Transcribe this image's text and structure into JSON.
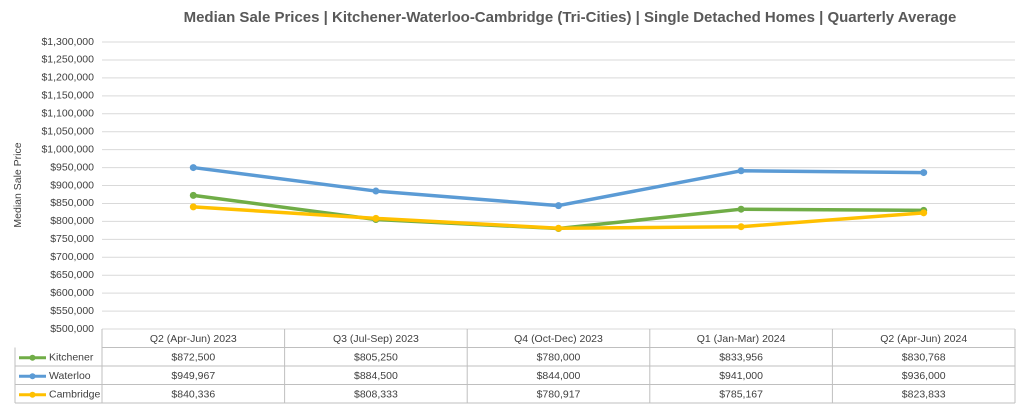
{
  "chart_data": {
    "type": "line",
    "title": "Median Sale Prices | Kitchener-Waterloo-Cambridge (Tri-Cities) | Single Detached Homes | Quarterly Average",
    "y_label": "Median Sale Price",
    "categories": [
      "Q2 (Apr-Jun) 2023",
      "Q3 (Jul-Sep) 2023",
      "Q4 (Oct-Dec) 2023",
      "Q1 (Jan-Mar) 2024",
      "Q2 (Apr-Jun) 2024"
    ],
    "series": [
      {
        "name": "Kitchener",
        "color": "#70ad47",
        "values": [
          872500,
          805250,
          780000,
          833956,
          830768
        ],
        "value_labels": [
          "$872,500",
          "$805,250",
          "$780,000",
          "$833,956",
          "$830,768"
        ]
      },
      {
        "name": "Waterloo",
        "color": "#5b9bd5",
        "values": [
          949967,
          884500,
          844000,
          941000,
          936000
        ],
        "value_labels": [
          "$949,967",
          "$884,500",
          "$844,000",
          "$941,000",
          "$936,000"
        ]
      },
      {
        "name": "Cambridge",
        "color": "#ffc000",
        "values": [
          840336,
          808333,
          780917,
          785167,
          823833
        ],
        "value_labels": [
          "$840,336",
          "$808,333",
          "$780,917",
          "$785,167",
          "$823,833"
        ]
      }
    ],
    "ylim": [
      500000,
      1300000
    ],
    "yticks": [
      {
        "value": 500000,
        "label": "$500,000"
      },
      {
        "value": 550000,
        "label": "$550,000"
      },
      {
        "value": 600000,
        "label": "$600,000"
      },
      {
        "value": 650000,
        "label": "$650,000"
      },
      {
        "value": 700000,
        "label": "$700,000"
      },
      {
        "value": 750000,
        "label": "$750,000"
      },
      {
        "value": 800000,
        "label": "$800,000"
      },
      {
        "value": 850000,
        "label": "$850,000"
      },
      {
        "value": 900000,
        "label": "$900,000"
      },
      {
        "value": 950000,
        "label": "$950,000"
      },
      {
        "value": 1000000,
        "label": "$1,000,000"
      },
      {
        "value": 1050000,
        "label": "$1,050,000"
      },
      {
        "value": 1100000,
        "label": "$1,100,000"
      },
      {
        "value": 1150000,
        "label": "$1,150,000"
      },
      {
        "value": 1200000,
        "label": "$1,200,000"
      },
      {
        "value": 1250000,
        "label": "$1,250,000"
      },
      {
        "value": 1300000,
        "label": "$1,300,000"
      }
    ],
    "grid": true
  }
}
